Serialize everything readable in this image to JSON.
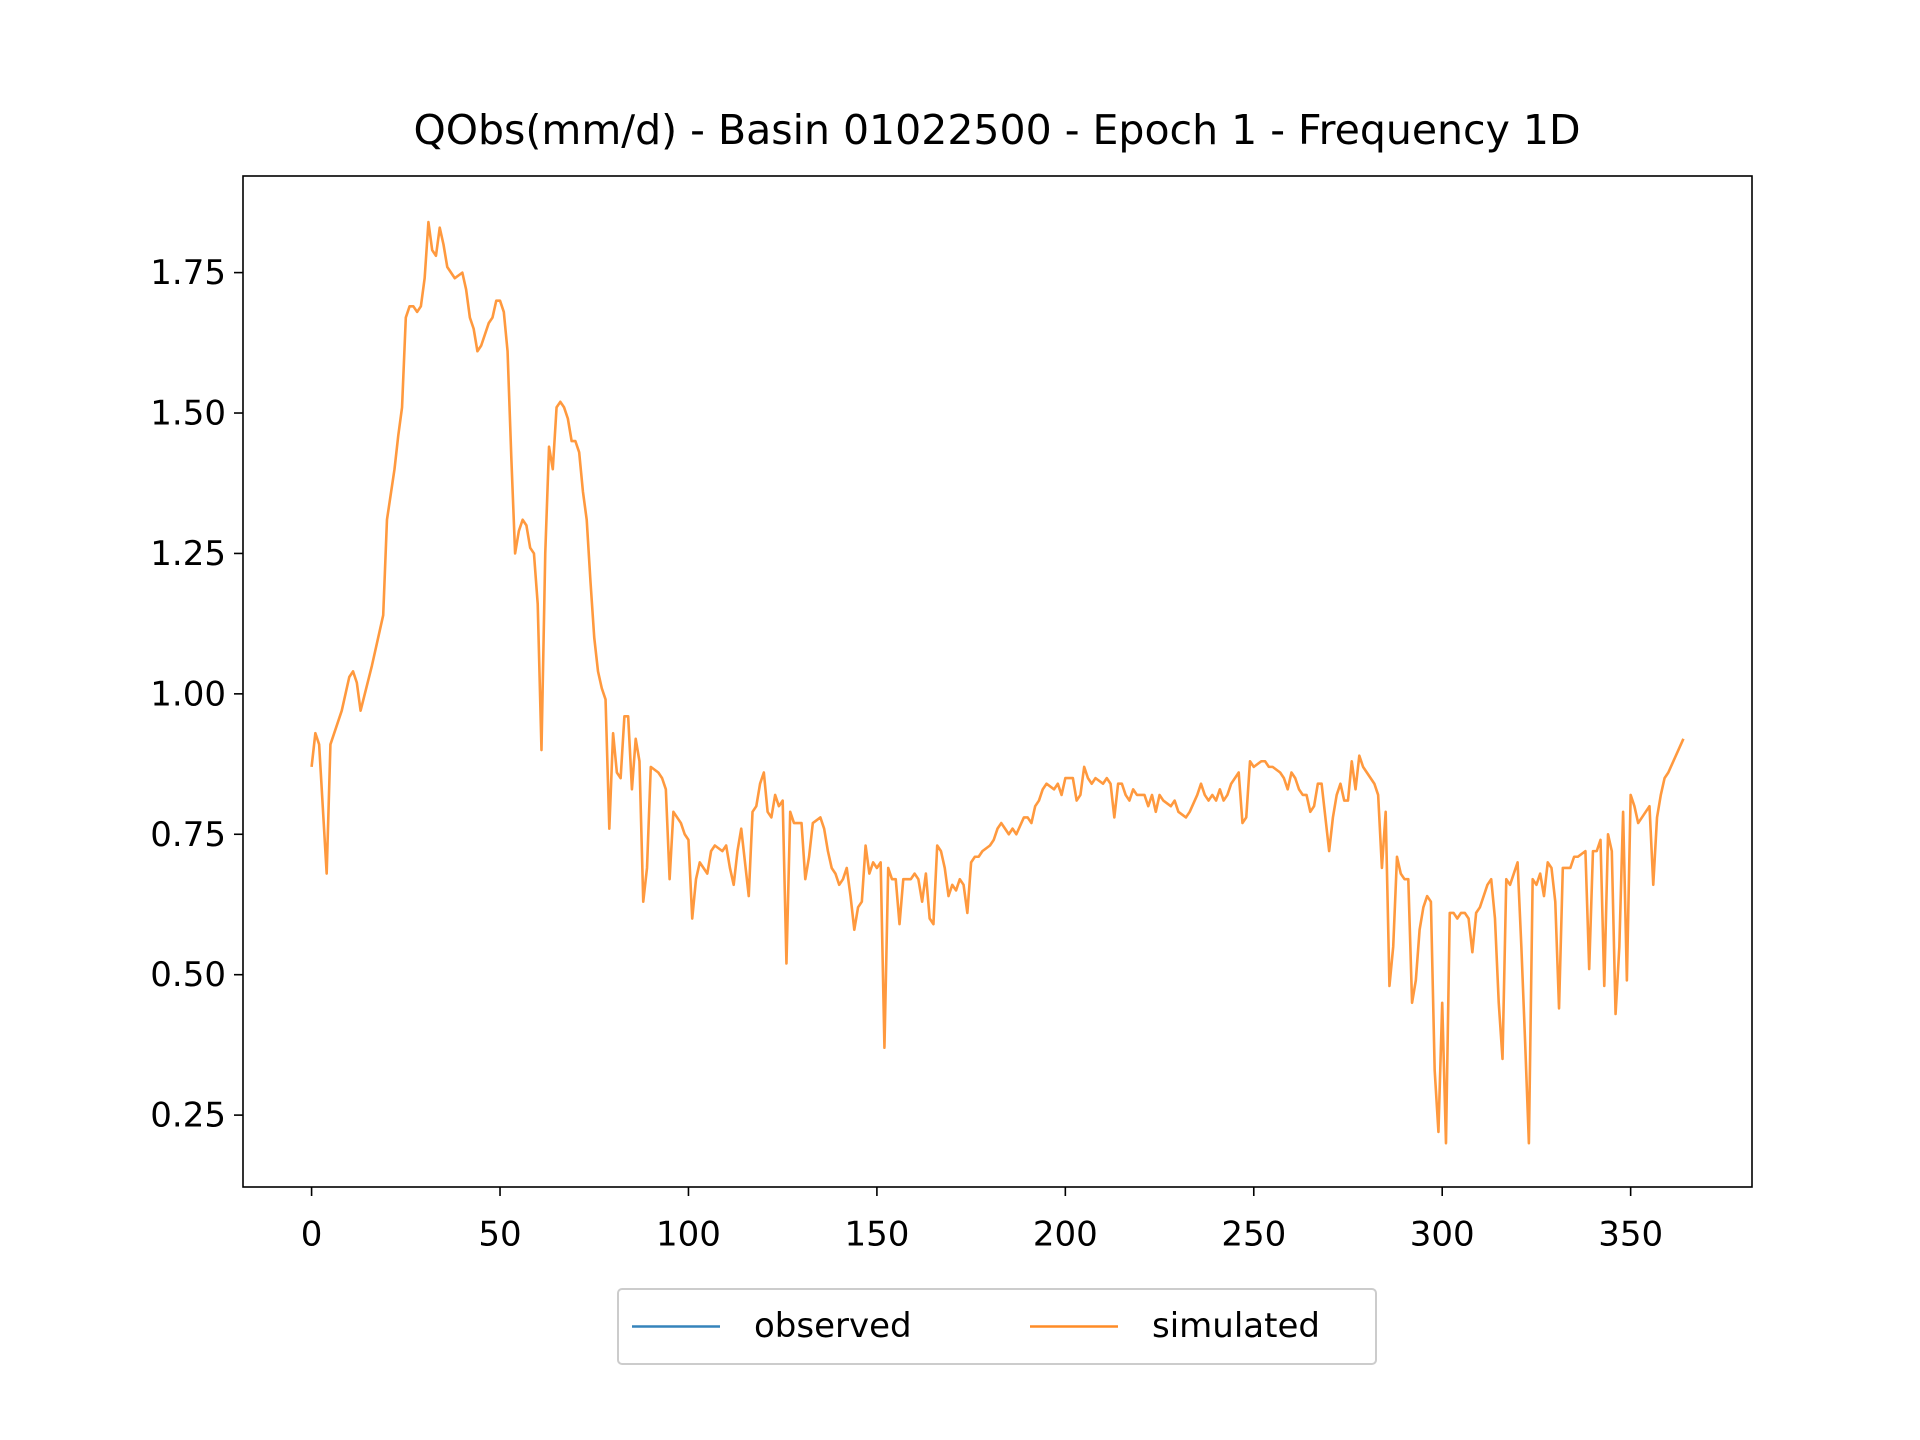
{
  "chart_data": {
    "type": "line",
    "title": "QObs(mm/d) - Basin 01022500 - Epoch 1 - Frequency 1D",
    "x": [
      0,
      1,
      2,
      4,
      5,
      7,
      8,
      10,
      11,
      12,
      13,
      16,
      18,
      19,
      20,
      22,
      23,
      24,
      25,
      26,
      27,
      28,
      29,
      30,
      31,
      32,
      33,
      34,
      35,
      36,
      38,
      40,
      41,
      42,
      43,
      44,
      45,
      47,
      48,
      49,
      50,
      51,
      52,
      53,
      54,
      55,
      56,
      57,
      58,
      59,
      60,
      61,
      62,
      63,
      64,
      65,
      66,
      67,
      68,
      69,
      70,
      71,
      72,
      73,
      74,
      75,
      76,
      77,
      78,
      79,
      80,
      81,
      82,
      83,
      84,
      85,
      86,
      87,
      88,
      89,
      90,
      92,
      93,
      94,
      95,
      96,
      98,
      99,
      100,
      101,
      102,
      103,
      105,
      106,
      107,
      109,
      110,
      111,
      112,
      113,
      114,
      115,
      116,
      117,
      118,
      119,
      120,
      121,
      122,
      123,
      124,
      125,
      126,
      127,
      128,
      130,
      131,
      132,
      133,
      135,
      136,
      137,
      138,
      139,
      140,
      141,
      142,
      143,
      144,
      145,
      146,
      147,
      148,
      149,
      150,
      151,
      152,
      153,
      154,
      155,
      156,
      157,
      159,
      160,
      161,
      162,
      163,
      164,
      165,
      166,
      167,
      168,
      169,
      170,
      171,
      172,
      173,
      174,
      175,
      176,
      177,
      178,
      180,
      181,
      182,
      183,
      184,
      185,
      186,
      187,
      189,
      190,
      191,
      192,
      193,
      194,
      195,
      197,
      198,
      199,
      200,
      202,
      203,
      204,
      205,
      206,
      207,
      208,
      210,
      211,
      212,
      213,
      214,
      215,
      216,
      217,
      218,
      219,
      221,
      222,
      223,
      224,
      225,
      226,
      228,
      229,
      230,
      232,
      233,
      235,
      236,
      237,
      238,
      239,
      240,
      241,
      242,
      243,
      244,
      245,
      246,
      247,
      248,
      249,
      250,
      252,
      253,
      254,
      255,
      257,
      258,
      259,
      260,
      261,
      262,
      263,
      264,
      265,
      266,
      267,
      268,
      270,
      271,
      272,
      273,
      274,
      275,
      276,
      277,
      278,
      279,
      280,
      282,
      283,
      284,
      285,
      286,
      287,
      288,
      289,
      290,
      291,
      292,
      293,
      294,
      295,
      296,
      297,
      298,
      299,
      300,
      301,
      302,
      303,
      304,
      305,
      306,
      307,
      308,
      309,
      310,
      312,
      313,
      314,
      315,
      316,
      317,
      318,
      319,
      320,
      321,
      322,
      323,
      324,
      325,
      326,
      327,
      328,
      329,
      330,
      331,
      332,
      334,
      335,
      336,
      338,
      339,
      340,
      341,
      342,
      343,
      344,
      345,
      346,
      347,
      348,
      349,
      350,
      351,
      352,
      354,
      355,
      356,
      357,
      358,
      359,
      360,
      362,
      364
    ],
    "series": [
      {
        "name": "observed",
        "color": "#1f77b4"
      },
      {
        "name": "simulated",
        "color": "#ff7f0e",
        "values": [
          0.87,
          0.93,
          0.91,
          0.68,
          0.91,
          0.95,
          0.97,
          1.03,
          1.04,
          1.02,
          0.97,
          1.05,
          1.11,
          1.14,
          1.31,
          1.4,
          1.46,
          1.51,
          1.67,
          1.69,
          1.69,
          1.68,
          1.69,
          1.74,
          1.84,
          1.79,
          1.78,
          1.83,
          1.8,
          1.76,
          1.74,
          1.75,
          1.72,
          1.67,
          1.65,
          1.61,
          1.62,
          1.66,
          1.67,
          1.7,
          1.7,
          1.68,
          1.61,
          1.42,
          1.25,
          1.29,
          1.31,
          1.3,
          1.26,
          1.25,
          1.16,
          0.9,
          1.25,
          1.44,
          1.4,
          1.51,
          1.52,
          1.51,
          1.49,
          1.45,
          1.45,
          1.43,
          1.36,
          1.31,
          1.2,
          1.1,
          1.04,
          1.01,
          0.99,
          0.76,
          0.93,
          0.86,
          0.85,
          0.96,
          0.96,
          0.83,
          0.92,
          0.88,
          0.63,
          0.69,
          0.87,
          0.86,
          0.85,
          0.83,
          0.67,
          0.79,
          0.77,
          0.75,
          0.74,
          0.6,
          0.67,
          0.7,
          0.68,
          0.72,
          0.73,
          0.72,
          0.73,
          0.69,
          0.66,
          0.72,
          0.76,
          0.7,
          0.64,
          0.79,
          0.8,
          0.84,
          0.86,
          0.79,
          0.78,
          0.82,
          0.8,
          0.81,
          0.52,
          0.79,
          0.77,
          0.77,
          0.67,
          0.71,
          0.77,
          0.78,
          0.76,
          0.72,
          0.69,
          0.68,
          0.66,
          0.67,
          0.69,
          0.64,
          0.58,
          0.62,
          0.63,
          0.73,
          0.68,
          0.7,
          0.69,
          0.7,
          0.37,
          0.69,
          0.67,
          0.67,
          0.59,
          0.67,
          0.67,
          0.68,
          0.67,
          0.63,
          0.68,
          0.6,
          0.59,
          0.73,
          0.72,
          0.69,
          0.64,
          0.66,
          0.65,
          0.67,
          0.66,
          0.61,
          0.7,
          0.71,
          0.71,
          0.72,
          0.73,
          0.74,
          0.76,
          0.77,
          0.76,
          0.75,
          0.76,
          0.75,
          0.78,
          0.78,
          0.77,
          0.8,
          0.81,
          0.83,
          0.84,
          0.83,
          0.84,
          0.82,
          0.85,
          0.85,
          0.81,
          0.82,
          0.87,
          0.85,
          0.84,
          0.85,
          0.84,
          0.85,
          0.84,
          0.78,
          0.84,
          0.84,
          0.82,
          0.81,
          0.83,
          0.82,
          0.82,
          0.8,
          0.82,
          0.79,
          0.82,
          0.81,
          0.8,
          0.81,
          0.79,
          0.78,
          0.79,
          0.82,
          0.84,
          0.82,
          0.81,
          0.82,
          0.81,
          0.83,
          0.81,
          0.82,
          0.84,
          0.85,
          0.86,
          0.77,
          0.78,
          0.88,
          0.87,
          0.88,
          0.88,
          0.87,
          0.87,
          0.86,
          0.85,
          0.83,
          0.86,
          0.85,
          0.83,
          0.82,
          0.82,
          0.79,
          0.8,
          0.84,
          0.84,
          0.72,
          0.78,
          0.82,
          0.84,
          0.81,
          0.81,
          0.88,
          0.83,
          0.89,
          0.87,
          0.86,
          0.84,
          0.82,
          0.69,
          0.79,
          0.48,
          0.55,
          0.71,
          0.68,
          0.67,
          0.67,
          0.45,
          0.49,
          0.58,
          0.62,
          0.64,
          0.63,
          0.33,
          0.22,
          0.45,
          0.2,
          0.61,
          0.61,
          0.6,
          0.61,
          0.61,
          0.6,
          0.54,
          0.61,
          0.62,
          0.66,
          0.67,
          0.6,
          0.45,
          0.35,
          0.67,
          0.66,
          0.68,
          0.7,
          0.55,
          0.38,
          0.2,
          0.67,
          0.66,
          0.68,
          0.64,
          0.7,
          0.69,
          0.63,
          0.44,
          0.69,
          0.69,
          0.71,
          0.71,
          0.72,
          0.51,
          0.72,
          0.72,
          0.74,
          0.48,
          0.75,
          0.72,
          0.43,
          0.55,
          0.79,
          0.49,
          0.82,
          0.8,
          0.77,
          0.79,
          0.8,
          0.66,
          0.78,
          0.82,
          0.85,
          0.86,
          0.89,
          0.92
        ]
      }
    ],
    "xlim": [
      -18.2,
      382.2
    ],
    "ylim": [
      0.122,
      1.922
    ],
    "xticks": [
      0,
      50,
      100,
      150,
      200,
      250,
      300,
      350
    ],
    "yticks": [
      0.25,
      {
        "value": 0.5,
        "label": "0.50"
      },
      0.75,
      {
        "value": 1,
        "label": "1.00"
      },
      1.25,
      {
        "value": 1.5,
        "label": "1.50"
      },
      1.75
    ],
    "grid": false,
    "legend": "bottom"
  }
}
